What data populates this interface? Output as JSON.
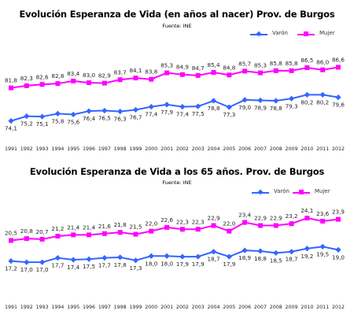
{
  "chart_data": [
    {
      "type": "line",
      "title": "Evolución Esperanza de Vida (en años al nacer) Prov. de Burgos",
      "source": "Fuente: INE",
      "legend_position": "top-right",
      "grid": false,
      "categories": [
        "1991",
        "1992",
        "1993",
        "1994",
        "1995",
        "1996",
        "1997",
        "1998",
        "1999",
        "2000",
        "2001",
        "2002",
        "2003",
        "2004",
        "2005",
        "2006",
        "2007",
        "2008",
        "2009",
        "2010",
        "2011",
        "2012"
      ],
      "ylim": [
        70,
        92
      ],
      "series": [
        {
          "name": "Varón",
          "color": "#3366FF",
          "marker": "diamond",
          "values": [
            74.1,
            75.2,
            75.1,
            75.8,
            75.6,
            76.4,
            76.5,
            76.3,
            76.7,
            77.4,
            77.9,
            77.4,
            77.5,
            78.8,
            77.3,
            79.0,
            78.9,
            78.8,
            79.3,
            80.2,
            80.2,
            79.6
          ],
          "labels": [
            "74,1",
            "75,2",
            "75,1",
            "75,8",
            "75,6",
            "76,4",
            "76,5",
            "76,3",
            "76,7",
            "77,4",
            "77,9",
            "77,4",
            "77,5",
            "78,8",
            "77,3",
            "79,0",
            "78,9",
            "78,8",
            "79,3",
            "80,2",
            "80,2",
            "79,6"
          ]
        },
        {
          "name": "Mujer",
          "color": "#FF00FF",
          "marker": "square",
          "values": [
            81.8,
            82.3,
            82.6,
            82.8,
            83.4,
            83.0,
            82.9,
            83.7,
            84.1,
            83.8,
            85.3,
            84.9,
            84.7,
            85.4,
            84.8,
            85.7,
            85.3,
            85.8,
            85.8,
            86.5,
            86.0,
            86.6
          ],
          "labels": [
            "81,8",
            "82,3",
            "82,6",
            "82,8",
            "83,4",
            "83,0",
            "82,9",
            "83,7",
            "84,1",
            "83,8",
            "85,3",
            "84,9",
            "84,7",
            "85,4",
            "84,8",
            "85,7",
            "85,3",
            "85,8",
            "85,8",
            "86,5",
            "86,0",
            "86,6"
          ]
        }
      ]
    },
    {
      "type": "line",
      "title": "Evolución Esperanza de Vida a los 65 años. Prov. de Burgos",
      "source": "Fuente: INE",
      "legend_position": "top-right",
      "grid": false,
      "categories": [
        "1991",
        "1992",
        "1993",
        "1994",
        "1995",
        "1996",
        "1997",
        "1998",
        "1999",
        "2000",
        "2001",
        "2002",
        "2003",
        "2004",
        "2005",
        "2006",
        "2007",
        "2008",
        "2009",
        "2010",
        "2011",
        "2012"
      ],
      "ylim": [
        15,
        26
      ],
      "series": [
        {
          "name": "Varón",
          "color": "#3366FF",
          "marker": "diamond",
          "values": [
            17.2,
            17.0,
            17.0,
            17.7,
            17.4,
            17.5,
            17.7,
            17.8,
            17.3,
            18.0,
            18.0,
            17.9,
            17.9,
            18.7,
            17.9,
            18.9,
            18.8,
            18.5,
            18.7,
            19.2,
            19.5,
            19.0
          ],
          "labels": [
            "17,2",
            "17,0",
            "17,0",
            "17,7",
            "17,4",
            "17,5",
            "17,7",
            "17,8",
            "17,3",
            "18,0",
            "18,0",
            "17,9",
            "17,9",
            "18,7",
            "17,9",
            "18,9",
            "18,8",
            "18,5",
            "18,7",
            "19,2",
            "19,5",
            "19,0"
          ]
        },
        {
          "name": "Mujer",
          "color": "#FF00FF",
          "marker": "square",
          "values": [
            20.5,
            20.8,
            20.7,
            21.2,
            21.4,
            21.4,
            21.6,
            21.8,
            21.5,
            22.0,
            22.6,
            22.3,
            22.3,
            22.9,
            22.0,
            23.4,
            22.9,
            22.9,
            23.2,
            24.1,
            23.6,
            23.9
          ],
          "labels": [
            "20,5",
            "20,8",
            "20,7",
            "21,2",
            "21,4",
            "21,4",
            "21,6",
            "21,8",
            "21,5",
            "22,0",
            "22,6",
            "22,3",
            "22,3",
            "22,9",
            "22,0",
            "23,4",
            "22,9",
            "22,9",
            "23,2",
            "24,1",
            "23,6",
            "23,9"
          ]
        }
      ]
    }
  ]
}
